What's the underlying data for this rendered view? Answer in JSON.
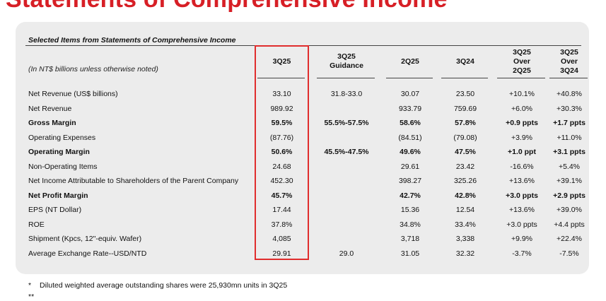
{
  "slide_title": "Statements of Comprehensive Income",
  "table": {
    "caption": "Selected Items from Statements of Comprehensive Income",
    "units_note": "(In NT$ billions unless otherwise noted)",
    "columns": [
      {
        "lines": [
          "3Q25"
        ]
      },
      {
        "lines": [
          "3Q25",
          "Guidance"
        ]
      },
      {
        "lines": [
          "2Q25"
        ]
      },
      {
        "lines": [
          "3Q24"
        ]
      },
      {
        "lines": [
          "3Q25",
          "Over",
          "2Q25"
        ]
      },
      {
        "lines": [
          "3Q25",
          "Over",
          "3Q24"
        ]
      }
    ],
    "rows": [
      {
        "label": "Net Revenue (US$ billions)",
        "bold": false,
        "values": [
          "33.10",
          "31.8-33.0",
          "30.07",
          "23.50",
          "+10.1%",
          "+40.8%"
        ]
      },
      {
        "label": "Net Revenue",
        "bold": false,
        "values": [
          "989.92",
          "",
          "933.79",
          "759.69",
          "+6.0%",
          "+30.3%"
        ]
      },
      {
        "label": "Gross Margin",
        "bold": true,
        "values": [
          "59.5%",
          "55.5%-57.5%",
          "58.6%",
          "57.8%",
          "+0.9 ppts",
          "+1.7 ppts"
        ]
      },
      {
        "label": "Operating Expenses",
        "bold": false,
        "values": [
          "(87.76)",
          "",
          "(84.51)",
          "(79.08)",
          "+3.9%",
          "+11.0%"
        ]
      },
      {
        "label": "Operating Margin",
        "bold": true,
        "values": [
          "50.6%",
          "45.5%-47.5%",
          "49.6%",
          "47.5%",
          "+1.0 ppt",
          "+3.1 ppts"
        ]
      },
      {
        "label": "Non-Operating Items",
        "bold": false,
        "values": [
          "24.68",
          "",
          "29.61",
          "23.42",
          "-16.6%",
          "+5.4%"
        ]
      },
      {
        "label": "Net Income Attributable to Shareholders of the Parent Company",
        "bold": false,
        "values": [
          "452.30",
          "",
          "398.27",
          "325.26",
          "+13.6%",
          "+39.1%"
        ]
      },
      {
        "label": "Net Profit Margin",
        "bold": true,
        "values": [
          "45.7%",
          "",
          "42.7%",
          "42.8%",
          "+3.0 ppts",
          "+2.9 ppts"
        ]
      },
      {
        "label": "EPS (NT Dollar)",
        "bold": false,
        "values": [
          "17.44",
          "",
          "15.36",
          "12.54",
          "+13.6%",
          "+39.0%"
        ]
      },
      {
        "label": "ROE",
        "bold": false,
        "values": [
          "37.8%",
          "",
          "34.8%",
          "33.4%",
          "+3.0 ppts",
          "+4.4 ppts"
        ]
      },
      {
        "label": "Shipment (Kpcs, 12\"-equiv. Wafer)",
        "bold": false,
        "values": [
          "4,085",
          "",
          "3,718",
          "3,338",
          "+9.9%",
          "+22.4%"
        ]
      },
      {
        "label": "Average Exchange Rate--USD/NTD",
        "bold": false,
        "values": [
          "29.91",
          "29.0",
          "31.05",
          "32.32",
          "-3.7%",
          "-7.5%"
        ]
      }
    ]
  },
  "footnotes": [
    {
      "mark": "*",
      "text": "Diluted weighted average outstanding shares were 25,930mn units in 3Q25"
    },
    {
      "mark": "**",
      "text": ""
    }
  ]
}
